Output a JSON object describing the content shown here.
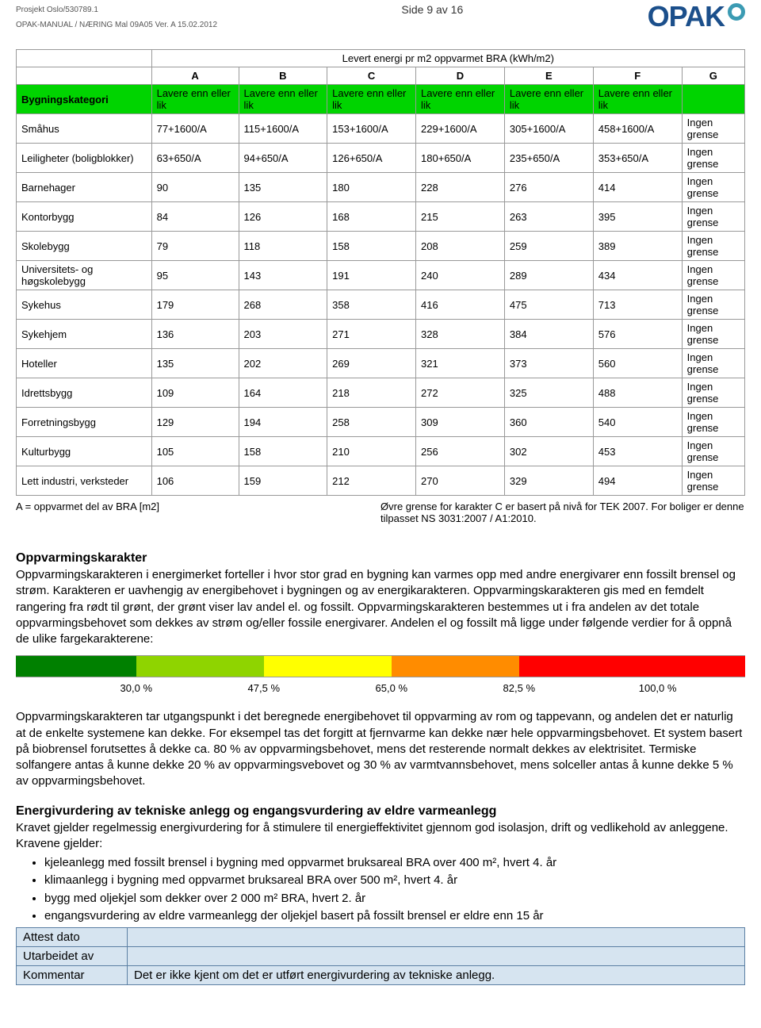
{
  "meta": {
    "project": "Prosjekt Oslo/530789.1",
    "manual": "OPAK-MANUAL / NÆRING  Mal  09A05   Ver. A 15.02.2012",
    "page": "Side 9 av 16",
    "logo_text": "OPAK",
    "logo_color": "#1b4f8b",
    "logo_ring_color": "#3b9bb3"
  },
  "energy_table": {
    "super_header": "Levert energi pr m2 oppvarmet BRA (kWh/m2)",
    "row_header": "Bygningskategori",
    "grades": [
      "A",
      "B",
      "C",
      "D",
      "E",
      "F",
      "G"
    ],
    "green_label": "Lavere enn eller lik",
    "green_bg": "#00d400",
    "columns_widths": [
      "170px",
      "95px",
      "95px",
      "95px",
      "95px",
      "95px",
      "95px",
      "95px"
    ],
    "rows": [
      {
        "cat": "Småhus",
        "vals": [
          "77+1600/A",
          "115+1600/A",
          "153+1600/A",
          "229+1600/A",
          "305+1600/A",
          "458+1600/A",
          "Ingen grense"
        ]
      },
      {
        "cat": "Leiligheter (boligblokker)",
        "vals": [
          "63+650/A",
          "94+650/A",
          "126+650/A",
          "180+650/A",
          "235+650/A",
          "353+650/A",
          "Ingen grense"
        ]
      },
      {
        "cat": "Barnehager",
        "vals": [
          "90",
          "135",
          "180",
          "228",
          "276",
          "414",
          "Ingen grense"
        ]
      },
      {
        "cat": "Kontorbygg",
        "vals": [
          "84",
          "126",
          "168",
          "215",
          "263",
          "395",
          "Ingen grense"
        ]
      },
      {
        "cat": "Skolebygg",
        "vals": [
          "79",
          "118",
          "158",
          "208",
          "259",
          "389",
          "Ingen grense"
        ]
      },
      {
        "cat": "Universitets- og høgskolebygg",
        "vals": [
          "95",
          "143",
          "191",
          "240",
          "289",
          "434",
          "Ingen grense"
        ]
      },
      {
        "cat": "Sykehus",
        "vals": [
          "179",
          "268",
          "358",
          "416",
          "475",
          "713",
          "Ingen grense"
        ]
      },
      {
        "cat": "Sykehjem",
        "vals": [
          "136",
          "203",
          "271",
          "328",
          "384",
          "576",
          "Ingen grense"
        ]
      },
      {
        "cat": "Hoteller",
        "vals": [
          "135",
          "202",
          "269",
          "321",
          "373",
          "560",
          "Ingen grense"
        ]
      },
      {
        "cat": "Idrettsbygg",
        "vals": [
          "109",
          "164",
          "218",
          "272",
          "325",
          "488",
          "Ingen grense"
        ]
      },
      {
        "cat": "Forretningsbygg",
        "vals": [
          "129",
          "194",
          "258",
          "309",
          "360",
          "540",
          "Ingen grense"
        ]
      },
      {
        "cat": "Kulturbygg",
        "vals": [
          "105",
          "158",
          "210",
          "256",
          "302",
          "453",
          "Ingen grense"
        ]
      },
      {
        "cat": "Lett industri, verksteder",
        "vals": [
          "106",
          "159",
          "212",
          "270",
          "329",
          "494",
          "Ingen grense"
        ]
      }
    ],
    "footnote_left": "A = oppvarmet del av BRA [m2]",
    "footnote_right": "Øvre grense for karakter C er basert på nivå for TEK 2007. For boliger er denne tilpasset NS 3031:2007 / A1:2010."
  },
  "section1": {
    "title": "Oppvarmingskarakter",
    "para": "Oppvarmingskarakteren i energimerket forteller i hvor stor grad en bygning kan varmes opp med andre energivarer enn fossilt brensel og strøm. Karakteren er uavhengig av energibehovet i bygningen og av energikarakteren. Oppvarmingskarakteren gis med en femdelt rangering fra rødt til grønt, der grønt viser lav andel el. og fossilt. Oppvarmingskarakteren bestemmes ut i fra andelen av det totale oppvarmingsbehovet som dekkes av strøm og/eller fossile energivarer. Andelen el og fossilt må ligge under følgende verdier for å oppnå de ulike fargekarakterene:"
  },
  "scale": {
    "segments": [
      {
        "color": "#008000",
        "width": 16.5
      },
      {
        "color": "#8fd400",
        "width": 17.5
      },
      {
        "color": "#ffff00",
        "width": 17.5
      },
      {
        "color": "#ff8c00",
        "width": 17.5
      },
      {
        "color": "#ff0000",
        "width": 31.0
      }
    ],
    "labels": [
      {
        "text": "30,0 %",
        "pos": 16.5
      },
      {
        "text": "47,5 %",
        "pos": 34.0
      },
      {
        "text": "65,0 %",
        "pos": 51.5
      },
      {
        "text": "82,5 %",
        "pos": 69.0
      },
      {
        "text": "100,0 %",
        "pos": 88.0
      }
    ]
  },
  "section2": {
    "para": "Oppvarmingskarakteren tar utgangspunkt i det beregnede energibehovet til oppvarming av rom og tappevann, og andelen det er naturlig at de enkelte systemene kan dekke. For eksempel tas det forgitt at fjernvarme kan dekke nær hele oppvarmingsbehovet. Et system basert på biobrensel forutsettes å dekke ca. 80 % av oppvarmingsbehovet, mens det resterende normalt dekkes av elektrisitet. Termiske solfangere antas å kunne dekke 20 % av oppvarmingsvebovet og 30 % av varmtvannsbehovet, mens solceller antas å kunne dekke 5 % av oppvarmingsbehovet."
  },
  "section3": {
    "title": "Energivurdering av tekniske anlegg og engangsvurdering av eldre varmeanlegg",
    "para": "Kravet gjelder regelmessig energivurdering for å stimulere til energieffektivitet gjennom god isolasjon, drift og vedlikehold av anleggene. Kravene gjelder:",
    "bullets": [
      "kjeleanlegg med fossilt brensel i bygning med oppvarmet bruksareal BRA over 400 m², hvert 4. år",
      "klimaanlegg i bygning med oppvarmet bruksareal BRA over 500 m², hvert 4. år",
      "bygg med oljekjel som dekker over 2 000 m² BRA, hvert 2. år",
      "engangsvurdering av eldre varmeanlegg der oljekjel basert på fossilt brensel er eldre enn 15 år"
    ]
  },
  "attest": {
    "bg": "#d6e4f0",
    "border": "#5b7fa3",
    "rows": [
      {
        "label": "Attest dato",
        "value": ""
      },
      {
        "label": "Utarbeidet av",
        "value": ""
      },
      {
        "label": "Kommentar",
        "value": "Det er ikke kjent om det er utført energivurdering av tekniske anlegg."
      }
    ]
  }
}
